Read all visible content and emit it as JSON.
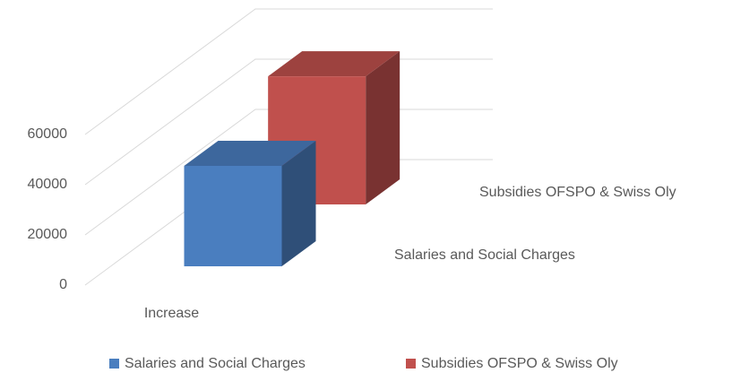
{
  "chart_data": {
    "type": "bar3d",
    "categories": [
      "Increase"
    ],
    "series": [
      {
        "name": "Salaries and Social Charges",
        "color": "#4a7ebf",
        "values": [
          40000
        ]
      },
      {
        "name": "Subsidies OFSPO & Swiss Oly",
        "color": "#c0504d",
        "values": [
          51000
        ]
      }
    ],
    "ylim": [
      0,
      60000
    ],
    "yticks": [
      0,
      20000,
      40000,
      60000
    ],
    "grid": true,
    "legend": "bottom"
  }
}
